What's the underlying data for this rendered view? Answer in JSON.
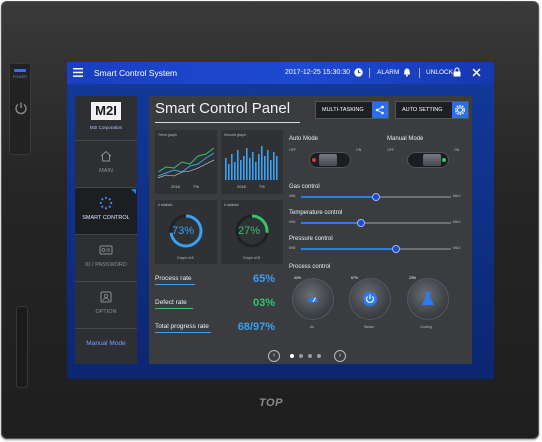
{
  "device": {
    "power_label": "POWER",
    "brand": "TOP"
  },
  "titlebar": {
    "menu_icon": "hamburger-menu-icon",
    "title": "Smart Control System",
    "datetime": "2017-12-25  15:30:30",
    "alarm_label": "ALARM",
    "unlock_label": "UNLOCK"
  },
  "sidebar": {
    "logo": "M2I",
    "logo_sub": "M2I Corporation",
    "items": [
      {
        "label": "MAIN",
        "icon": "home-icon"
      },
      {
        "label": "SMART CONTROL",
        "icon": "spinner-dots-icon"
      },
      {
        "label": "ID / PASSWORD",
        "icon": "id-card-icon"
      },
      {
        "label": "OPTION",
        "icon": "option-icon"
      }
    ],
    "mode_label": "Manual Mode"
  },
  "panel": {
    "title": "Smart Control Panel",
    "multitasking_label": "MULTI-TASKING",
    "auto_setting_label": "AUTO SETTING"
  },
  "charts": [
    {
      "title": "Trend graph",
      "legend": [
        "2016",
        "7%"
      ]
    },
    {
      "title": "Second graph",
      "legend": [
        "2016",
        "7%"
      ]
    }
  ],
  "gauges": [
    {
      "title": "# statistic",
      "value": "73%",
      "sublabel": "Graph of A",
      "color": "#3aa0f0"
    },
    {
      "title": "# statistic",
      "value": "27%",
      "sublabel": "Graph of B",
      "color": "#35c46a"
    }
  ],
  "rates": [
    {
      "label": "Process rate",
      "value": "65%",
      "color": "#3aa0f0"
    },
    {
      "label": "Defect rate",
      "value": "03%",
      "color": "#35c46a"
    },
    {
      "label": "Total progress rate",
      "value": "68/97%",
      "color": "#3aa0f0"
    }
  ],
  "modes": {
    "auto": {
      "title": "Auto Mode",
      "off": "OFF",
      "on": "ON"
    },
    "manual": {
      "title": "Manual Mode",
      "off": "OFF",
      "on": "ON"
    }
  },
  "controls": {
    "gas": {
      "title": "Gas control",
      "min": "MIN",
      "max": "MAX",
      "level": 0.5
    },
    "temperature": {
      "title": "Temperature control",
      "min": "MIN",
      "max": "MAX",
      "level": 0.4
    },
    "pressure": {
      "title": "Pressure control",
      "min": "MIN",
      "max": "MAX",
      "level": 0.63
    }
  },
  "process": {
    "title": "Process control",
    "knobs": [
      {
        "pct": "42%",
        "name": "Air",
        "icon": "gauge-icon"
      },
      {
        "pct": "67%",
        "name": "Steam",
        "icon": "power-icon"
      },
      {
        "pct": "23%",
        "name": "Cooling",
        "icon": "flask-icon"
      }
    ]
  },
  "pager": {
    "pages": 4,
    "current": 1
  }
}
